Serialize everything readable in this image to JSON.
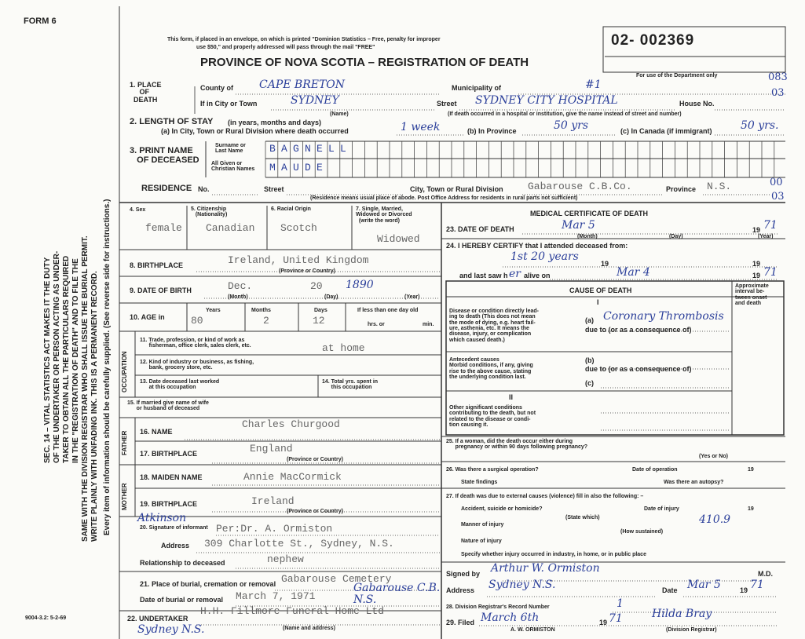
{
  "header": {
    "form": "FORM 6",
    "notice": [
      "This form, if placed in an envelope, on which is printed \"Dominion Statistics – Free, penalty for improper",
      "use $50,\" and properly addressed will pass through the mail \"FREE\""
    ],
    "title": "PROVINCE OF NOVA SCOTIA – REGISTRATION OF DEATH",
    "reg_number": "02- 002369",
    "dept_note": "For use of the Department only",
    "codes": [
      "083",
      "03",
      "00",
      "03"
    ],
    "form_code": "9004-3.2: 5-2-69"
  },
  "side_note": [
    "SEC. 14 – VITAL STATISTICS ACT MAKES IT THE DUTY",
    "OF THE UNDERTAKER OR PERSON ACTING AS UNDER-",
    "TAKER TO OBTAIN ALL THE PARTICULARS REQUIRED",
    "IN THE \"REGISTRATION OF DEATH\" AND TO FILE THE",
    "SAME WITH THE DIVISION REGISTRAR WHO SHALL ISSUE THE BURIAL PERMIT.",
    "WRITE PLAINLY WITH UNFADING INK. THIS IS A PERMANENT RECORD.",
    "Every item of information should be carefully supplied. (See reverse side for instructions.)"
  ],
  "place": {
    "heading": "1. PLACE\n     OF\n  DEATH",
    "county_label": "County of",
    "county": "CAPE BRETON",
    "municipality_label": "Municipality of",
    "municipality": "#1",
    "city_label": "If in City or Town",
    "city": "SYDNEY",
    "city_note": "(Name)",
    "street_label": "Street",
    "street": "SYDNEY CITY HOSPITAL",
    "house_label": "House No.",
    "hospital_note": "(If death occurred in a hospital or institution, give the name instead of street and number)"
  },
  "stay": {
    "heading": "2. LENGTH OF STAY",
    "heading_note": "(in years, months and days)",
    "city_label": "(a) In City, Town or Rural Division where death occurred",
    "city": "1 week",
    "province_label": "(b) In Province",
    "province": "50 yrs",
    "canada_label": "(c) In Canada (if immigrant)",
    "canada": "50 yrs."
  },
  "name": {
    "heading": "3. PRINT NAME\n   OF DECEASED",
    "surname_label": "Surname or\nLast Name",
    "surname": "BAGNELL",
    "given_label": "All Given or\nChristian Names",
    "given": "MAUDE"
  },
  "residence": {
    "heading": "RESIDENCE",
    "no_label": "No.",
    "street_label": "Street",
    "city_label": "City, Town or Rural Division",
    "city": "Gabarouse C.B.Co.",
    "province_label": "Province",
    "province": "N.S.",
    "note": "(Residence means usual place of abode. Post Office Address for residents in rural parts not sufficient)"
  },
  "personal": {
    "sex_label": "4. Sex",
    "sex": "female",
    "citizenship_label": "5. Citizenship\n   (Nationality)",
    "citizenship": "Canadian",
    "origin_label": "6. Racial Origin",
    "origin": "Scotch",
    "status_label": "7. Single, Married,\nWidowed or Divorced\n  (write the word)",
    "status": "Widowed",
    "birthplace_label": "8. BIRTHPLACE",
    "birthplace": "Ireland, United Kingdom",
    "birthplace_note": "(Province or Country)",
    "dob_label": "9. DATE OF BIRTH",
    "dob_month": "Dec.",
    "dob_day": "20",
    "dob_year": "1890",
    "month_note": "(Month)",
    "day_note": "(Day)",
    "year_note": "(Year)",
    "age_label": "10. AGE in",
    "years_label": "Years",
    "years": "80",
    "months_label": "Months",
    "months": "2",
    "days_label": "Days",
    "days": "12",
    "less_label": "If less than one day old",
    "hrs_label": "hrs. or",
    "min_label": "min."
  },
  "occupation": {
    "side": "OCCUPATION",
    "trade_label": "11. Trade, profession, or kind of work as\n      fisherman, office clerk, sales clerk, etc.",
    "trade": "at home",
    "industry_label": "12. Kind of industry or business, as fishing,\n      bank, grocery store, etc.",
    "last_worked_label": "13. Date deceased last worked\n      at this occupation",
    "total_label": "14. Total yrs. spent in\n      this occupation",
    "spouse_label": "15. If married give name of wife\n      or husband of deceased"
  },
  "father": {
    "side": "FATHER",
    "name_label": "16. NAME",
    "name": "Charles Churgood",
    "birthplace_label": "17. BIRTHPLACE",
    "birthplace": "England",
    "note": "(Province or Country)"
  },
  "mother": {
    "side": "MOTHER",
    "name_label": "18. MAIDEN NAME",
    "name": "Annie MacCormick",
    "birthplace_label": "19. BIRTHPLACE",
    "birthplace": "Ireland",
    "note": "(Province or Country)"
  },
  "informant": {
    "label": "20. Signature of informant",
    "signature": "Atkinson",
    "name": "Per:Dr. A. Ormiston",
    "address_label": "Address",
    "address": "309 Charlotte St., Sydney, N.S.",
    "relationship_label": "Relationship to deceased",
    "relationship": "nephew"
  },
  "burial": {
    "place_label": "21. Place of burial, cremation or removal",
    "place": "Gabarouse Cemetery",
    "place_hand": "Gabarouse C.B.\nN.S.",
    "date_label": "Date of burial or removal",
    "date": "March 7, 1971",
    "undertaker_label": "22. UNDERTAKER",
    "undertaker": "H.H. Fillmore Funeral Home Ltd",
    "undertaker_hand": "Sydney N.S.",
    "note": "(Name and address)"
  },
  "medical": {
    "title": "MEDICAL CERTIFICATE OF DEATH",
    "death_label": "23. DATE OF DEATH",
    "death": "Mar 5",
    "century": "19",
    "death_year": "71",
    "month_note": "(Month)",
    "day_note": "(Day)",
    "year_note": "(Year)",
    "certify_label": "24. I HEREBY CERTIFY that I attended deceased from:",
    "attended": "1st 20 years",
    "from_century": "19",
    "to_century": "19",
    "last_seen_label": "and last saw h",
    "last_seen_pronoun": "er",
    "alive_label": "alive on",
    "last_seen": "Mar 4",
    "last_century": "19",
    "last_year": "71"
  },
  "cause": {
    "title": "CAUSE OF DEATH",
    "interval": "Approximate\ninterval be-\ntween onset\nand death",
    "part1": "I",
    "direct_label": "Disease or condition directly lead-\ning to death (This does not mean\nthe mode of dying, e.g. heart fail-\nure, asthenia, etc. It means the\ndisease, injury, or complication\nwhich caused death.)",
    "a_label": "(a)",
    "a": "Coronary Thrombosis",
    "due_a": "due to (or as a consequence of)",
    "antecedent_label": "Antecedent causes\nMorbid conditions, if any, giving\nrise to the above cause, stating\nthe underlying condition last.",
    "b_label": "(b)",
    "due_b": "due to (or as a consequence of)",
    "c_label": "(c)",
    "part2": "II",
    "other_label": "Other significant conditions\ncontributing to the death, but not\nrelated to the disease or condi-\ntion causing it."
  },
  "extra": {
    "pregnancy_label": "25. If a woman, did the death occur either during\n      pregnancy or within 90 days following pregnancy?",
    "yes_no": "(Yes or No)",
    "operation_label": "26. Was there a surgical operation?",
    "operation_date_label": "Date of operation",
    "operation_century": "19",
    "findings_label": "State findings",
    "autopsy_label": "Was there an autopsy?",
    "external_label": "27. If death was due to external causes (violence) fill in also the following: –",
    "accident_label": "Accident, suicide or homicide?",
    "injury_date_label": "Date of injury",
    "injury_century": "19",
    "state_which": "(State which)",
    "manner_label": "Manner of injury",
    "manner": "410.9",
    "how": "(How sustained)",
    "nature_label": "Nature of injury",
    "specify_label": "Specify whether injury occurred in industry, in home, or in public place"
  },
  "signature": {
    "signed_label": "Signed by",
    "signed": "Arthur W. Ormiston",
    "md": "M.D.",
    "address_label": "Address",
    "address": "Sydney N.S.",
    "date_label": "Date",
    "date": "Mar 5",
    "century": "19",
    "year": "71",
    "record_label": "28. Division Registrar's Record Number",
    "record": "1",
    "filed_label": "29. Filed",
    "filed": "March 6th",
    "filed_century": "19",
    "filed_year": "71",
    "registrar": "Hilda Bray",
    "registrar_note": "(Division Registrar)",
    "stamp": "A. W. ORMISTON"
  }
}
